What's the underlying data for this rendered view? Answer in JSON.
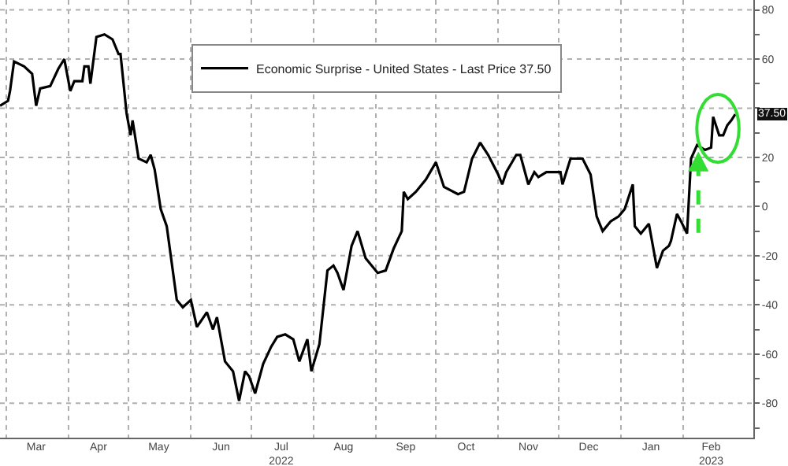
{
  "chart_data": {
    "type": "line",
    "x": [
      "2022-02-26",
      "2022-03-02",
      "2022-03-03",
      "2022-03-05",
      "2022-03-10",
      "2022-03-14",
      "2022-03-16",
      "2022-03-18",
      "2022-03-23",
      "2022-03-27",
      "2022-03-30",
      "2022-04-02",
      "2022-04-04",
      "2022-04-08",
      "2022-04-09",
      "2022-04-11",
      "2022-04-12",
      "2022-04-15",
      "2022-04-19",
      "2022-04-23",
      "2022-04-26",
      "2022-04-27",
      "2022-04-30",
      "2022-05-02",
      "2022-05-03",
      "2022-05-06",
      "2022-05-10",
      "2022-05-12",
      "2022-05-14",
      "2022-05-17",
      "2022-05-20",
      "2022-05-25",
      "2022-05-28",
      "2022-06-01",
      "2022-06-04",
      "2022-06-09",
      "2022-06-12",
      "2022-06-14",
      "2022-06-18",
      "2022-06-22",
      "2022-06-25",
      "2022-06-28",
      "2022-06-30",
      "2022-07-03",
      "2022-07-07",
      "2022-07-11",
      "2022-07-14",
      "2022-07-18",
      "2022-07-22",
      "2022-07-25",
      "2022-07-29",
      "2022-07-31",
      "2022-08-04",
      "2022-08-08",
      "2022-08-11",
      "2022-08-13",
      "2022-08-16",
      "2022-08-20",
      "2022-08-23",
      "2022-08-27",
      "2022-09-02",
      "2022-09-06",
      "2022-09-10",
      "2022-09-14",
      "2022-09-15",
      "2022-09-17",
      "2022-09-21",
      "2022-09-26",
      "2022-10-01",
      "2022-10-05",
      "2022-10-12",
      "2022-10-15",
      "2022-10-19",
      "2022-10-23",
      "2022-10-27",
      "2022-11-01",
      "2022-11-03",
      "2022-11-05",
      "2022-11-10",
      "2022-11-12",
      "2022-11-16",
      "2022-11-19",
      "2022-11-21",
      "2022-11-25",
      "2022-12-02",
      "2022-12-03",
      "2022-12-07",
      "2022-12-13",
      "2022-12-17",
      "2022-12-20",
      "2022-12-23",
      "2022-12-27",
      "2022-12-31",
      "2023-01-03",
      "2023-01-07",
      "2023-01-08",
      "2023-01-11",
      "2023-01-15",
      "2023-01-19",
      "2023-01-22",
      "2023-01-25",
      "2023-01-26",
      "2023-01-29",
      "2023-01-31",
      "2023-02-03",
      "2023-02-05",
      "2023-02-08",
      "2023-02-12",
      "2023-02-15",
      "2023-02-16",
      "2023-02-19",
      "2023-02-21",
      "2023-02-23",
      "2023-02-25",
      "2023-02-27"
    ],
    "series": [
      {
        "name": "Economic Surprise - United States - Last Price 37.50",
        "color": "#000000",
        "values": [
          41,
          43,
          47,
          59,
          57,
          54,
          41,
          48,
          49,
          56,
          60,
          47,
          51,
          51,
          57,
          57,
          50,
          69,
          70,
          68,
          62,
          62,
          38,
          29,
          35,
          19.5,
          18,
          21,
          15,
          -1,
          -8,
          -38,
          -41,
          -38,
          -49,
          -43,
          -50,
          -45,
          -63,
          -67,
          -79,
          -67,
          -69,
          -76,
          -64,
          -57,
          -53,
          -52,
          -54,
          -63,
          -54,
          -67,
          -56,
          -26,
          -24,
          -27,
          -34,
          -16,
          -10,
          -21,
          -27,
          -26,
          -17,
          -10,
          6,
          3,
          6,
          11,
          18,
          8,
          5,
          6,
          19.5,
          26,
          21,
          13,
          9,
          14,
          21,
          21,
          9,
          14,
          12,
          14,
          14,
          9,
          19.5,
          19.5,
          13,
          -4,
          -10,
          -6,
          -4,
          -1,
          9,
          -8,
          -11,
          -7,
          -25,
          -18,
          -16,
          -14,
          -3,
          -6,
          -11,
          19.5,
          25,
          23,
          24,
          36.5,
          29,
          29,
          33,
          35,
          37.5
        ]
      }
    ],
    "xlim": [
      "2022-02-26",
      "2023-03-08"
    ],
    "xticks": [
      {
        "value": "2022-03-01",
        "label": null
      },
      {
        "value": "2022-04-01",
        "label": null
      },
      {
        "value": "2022-05-01",
        "label": null
      },
      {
        "value": "2022-06-01",
        "label": null
      },
      {
        "value": "2022-07-01",
        "label": null
      },
      {
        "value": "2022-08-01",
        "label": null
      },
      {
        "value": "2022-09-01",
        "label": null
      },
      {
        "value": "2022-10-01",
        "label": null
      },
      {
        "value": "2022-11-01",
        "label": null
      },
      {
        "value": "2022-12-01",
        "label": null
      },
      {
        "value": "2023-01-01",
        "label": null
      },
      {
        "value": "2023-02-01",
        "label": null
      },
      {
        "value": "2022-03-16",
        "label": "Mar"
      },
      {
        "value": "2022-04-16",
        "label": "Apr"
      },
      {
        "value": "2022-05-16",
        "label": "May"
      },
      {
        "value": "2022-06-16",
        "label": "Jun"
      },
      {
        "value": "2022-07-16",
        "label": "Jul\n2022"
      },
      {
        "value": "2022-08-16",
        "label": "Aug"
      },
      {
        "value": "2022-09-16",
        "label": "Sep"
      },
      {
        "value": "2022-10-16",
        "label": "Oct"
      },
      {
        "value": "2022-11-16",
        "label": "Nov"
      },
      {
        "value": "2022-12-16",
        "label": "Dec"
      },
      {
        "value": "2023-01-16",
        "label": "Jan"
      },
      {
        "value": "2023-02-15",
        "label": "Feb\n2023"
      }
    ],
    "ylim": [
      -94,
      84
    ],
    "yticks": [
      80,
      {
        "value": 70,
        "label": null
      },
      60,
      {
        "value": 50,
        "label": null
      },
      {
        "value": 40,
        "label": null
      },
      {
        "value": 30,
        "label": null
      },
      20,
      {
        "value": 10,
        "label": null
      },
      0,
      {
        "value": -10,
        "label": null
      },
      -20,
      {
        "value": -30,
        "label": null
      },
      -40,
      {
        "value": -50,
        "label": null
      },
      -60,
      {
        "value": -70,
        "label": null
      },
      -80,
      {
        "value": -90,
        "label": null
      }
    ],
    "annotations": [
      {
        "text": "37.50",
        "x": "2023-02-27",
        "y": 37.5
      }
    ],
    "grid": true,
    "legend": "top",
    "marker": "none",
    "line_style": "solid"
  }
}
